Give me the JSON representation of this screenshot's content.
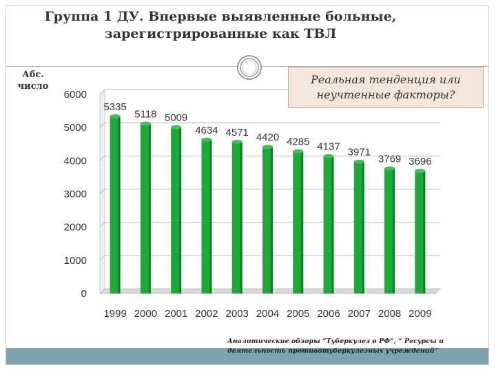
{
  "title": "Группа 1 ДУ. Впервые выявленные больные, зарегистрированные как ТВЛ",
  "y_unit_label": "Абс. число",
  "callout_text": "Реальная тенденция или неучтенные факторы?",
  "source_text": "Аналитические обзоры “Туберкулез в РФ”, “ Ресурсы и деятельность противотуберкулезных учреждений”",
  "colors": {
    "bar": "#1fa83a",
    "bar_shade": "#127a27",
    "callout_bg": "#f5e6dc",
    "bottom_bar": "#7fa3ad"
  },
  "icons": {
    "ornament": "circle-ornament-icon"
  },
  "chart_data": {
    "type": "bar",
    "categories": [
      "1999",
      "2000",
      "2001",
      "2002",
      "2003",
      "2004",
      "2005",
      "2006",
      "2007",
      "2008",
      "2009"
    ],
    "values": [
      5335,
      5118,
      5009,
      4634,
      4571,
      4420,
      4285,
      4137,
      3971,
      3769,
      3696
    ],
    "data_labels": [
      "5335",
      "5118",
      "5009",
      "4634",
      "4571",
      "4420",
      "4285",
      "4137",
      "3971",
      "3769",
      "3696"
    ],
    "y_ticks": [
      "0",
      "1000",
      "2000",
      "3000",
      "4000",
      "5000",
      "6000"
    ],
    "ylim": [
      0,
      6000
    ],
    "grid": true,
    "title": "",
    "xlabel": "",
    "ylabel": ""
  }
}
